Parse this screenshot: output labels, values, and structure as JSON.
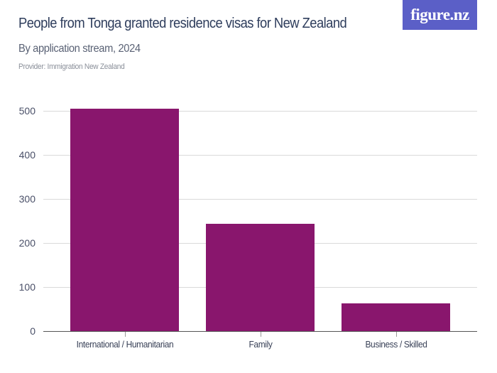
{
  "header": {
    "title": "People from Tonga granted residence visas for New Zealand",
    "subtitle": "By application stream, 2024",
    "provider": "Provider: Immigration New Zealand",
    "logo_text": "figure.nz"
  },
  "colors": {
    "bar": "#89166d",
    "logo_bg": "#5b5fc7",
    "title": "#2e3d5c"
  },
  "chart_data": {
    "type": "bar",
    "title": "People from Tonga granted residence visas for New Zealand",
    "subtitle": "By application stream, 2024",
    "categories": [
      "International / Humanitarian",
      "Family",
      "Business / Skilled"
    ],
    "values": [
      505,
      244,
      63
    ],
    "xlabel": "",
    "ylabel": "",
    "ylim": [
      0,
      500
    ],
    "yticks": [
      0,
      100,
      200,
      300,
      400,
      500
    ],
    "grid": true,
    "legend": null
  }
}
